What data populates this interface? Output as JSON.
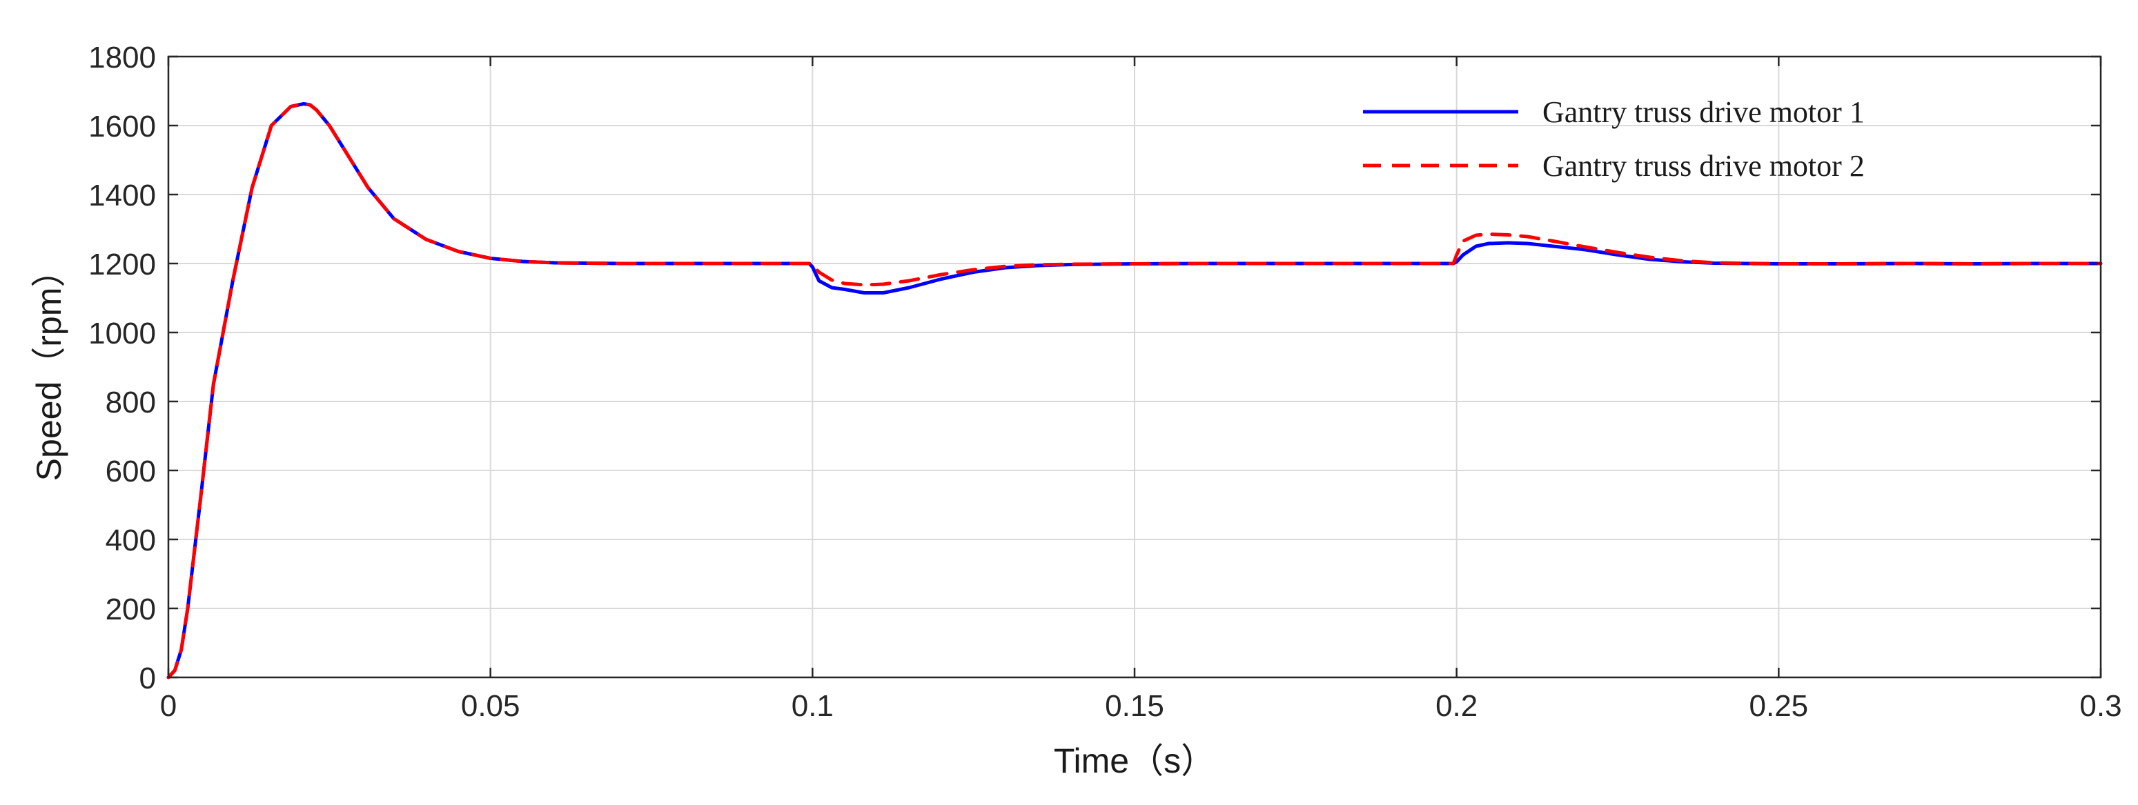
{
  "chart_data": {
    "type": "line",
    "title": "",
    "xlabel": "Time（s）",
    "ylabel": "Speed（rpm）",
    "xlim": [
      0,
      0.3
    ],
    "ylim": [
      0,
      1800
    ],
    "xticks": [
      0,
      0.05,
      0.1,
      0.15,
      0.2,
      0.25,
      0.3
    ],
    "xtick_labels": [
      "0",
      "0.05",
      "0.1",
      "0.15",
      "0.2",
      "0.25",
      "0.3"
    ],
    "yticks": [
      0,
      200,
      400,
      600,
      800,
      1000,
      1200,
      1400,
      1600,
      1800
    ],
    "ytick_labels": [
      "0",
      "200",
      "400",
      "600",
      "800",
      "1000",
      "1200",
      "1400",
      "1600",
      "1800"
    ],
    "grid": true,
    "legend_position": "top-right",
    "series": [
      {
        "name": "Gantry truss drive motor 1",
        "color": "#0000ff",
        "style": "solid",
        "x": [
          0,
          0.001,
          0.002,
          0.003,
          0.005,
          0.007,
          0.01,
          0.013,
          0.016,
          0.019,
          0.021,
          0.022,
          0.023,
          0.025,
          0.028,
          0.031,
          0.035,
          0.04,
          0.045,
          0.05,
          0.055,
          0.06,
          0.07,
          0.08,
          0.09,
          0.0995,
          0.1,
          0.101,
          0.103,
          0.105,
          0.108,
          0.111,
          0.115,
          0.12,
          0.125,
          0.13,
          0.135,
          0.14,
          0.15,
          0.16,
          0.17,
          0.18,
          0.19,
          0.1995,
          0.2,
          0.201,
          0.203,
          0.205,
          0.208,
          0.211,
          0.215,
          0.22,
          0.225,
          0.23,
          0.235,
          0.24,
          0.25,
          0.26,
          0.27,
          0.28,
          0.29,
          0.3
        ],
        "y": [
          0,
          20,
          80,
          200,
          520,
          850,
          1150,
          1420,
          1600,
          1655,
          1663,
          1660,
          1645,
          1600,
          1510,
          1420,
          1330,
          1270,
          1235,
          1215,
          1206,
          1202,
          1200,
          1200,
          1200,
          1200,
          1190,
          1150,
          1130,
          1125,
          1115,
          1115,
          1130,
          1155,
          1175,
          1188,
          1194,
          1197,
          1199,
          1200,
          1200,
          1200,
          1200,
          1200,
          1205,
          1225,
          1250,
          1258,
          1260,
          1258,
          1250,
          1240,
          1225,
          1212,
          1205,
          1201,
          1199,
          1199,
          1200,
          1199,
          1200,
          1200
        ]
      },
      {
        "name": "Gantry truss drive motor 2",
        "color": "#ff0000",
        "style": "dashed",
        "x": [
          0,
          0.001,
          0.002,
          0.003,
          0.005,
          0.007,
          0.01,
          0.013,
          0.016,
          0.019,
          0.021,
          0.022,
          0.023,
          0.025,
          0.028,
          0.031,
          0.035,
          0.04,
          0.045,
          0.05,
          0.055,
          0.06,
          0.07,
          0.08,
          0.09,
          0.0995,
          0.1,
          0.101,
          0.103,
          0.105,
          0.108,
          0.111,
          0.115,
          0.12,
          0.125,
          0.13,
          0.135,
          0.14,
          0.15,
          0.16,
          0.17,
          0.18,
          0.19,
          0.1995,
          0.2,
          0.201,
          0.203,
          0.205,
          0.208,
          0.211,
          0.215,
          0.22,
          0.225,
          0.23,
          0.235,
          0.24,
          0.25,
          0.26,
          0.27,
          0.28,
          0.29,
          0.3
        ],
        "y": [
          0,
          20,
          80,
          200,
          520,
          850,
          1150,
          1420,
          1600,
          1655,
          1663,
          1660,
          1645,
          1600,
          1510,
          1420,
          1330,
          1270,
          1235,
          1215,
          1206,
          1202,
          1200,
          1200,
          1200,
          1200,
          1195,
          1175,
          1152,
          1142,
          1138,
          1140,
          1150,
          1168,
          1182,
          1192,
          1196,
          1198,
          1199,
          1200,
          1200,
          1200,
          1200,
          1200,
          1225,
          1265,
          1282,
          1285,
          1283,
          1278,
          1265,
          1248,
          1232,
          1218,
          1208,
          1202,
          1199,
          1199,
          1200,
          1199,
          1200,
          1200
        ]
      }
    ]
  }
}
